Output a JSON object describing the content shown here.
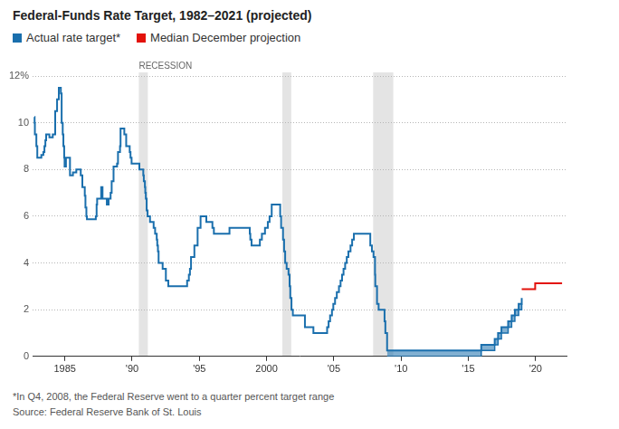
{
  "chart_data": {
    "type": "line",
    "title": "Federal-Funds Rate Target, 1982–2021 (projected)",
    "footnote": "*In Q4, 2008, the Federal Reserve went to a quarter percent target range",
    "source": "Source: Federal Reserve Bank of St. Louis",
    "xlim": [
      1982.6,
      2022.3
    ],
    "xticks": [
      1985,
      {
        "value": 1990,
        "label": "'90"
      },
      {
        "value": 1995,
        "label": "'95"
      },
      2000,
      {
        "value": 2005,
        "label": "'05"
      },
      {
        "value": 2010,
        "label": "'10"
      },
      {
        "value": 2015,
        "label": "'15"
      },
      {
        "value": 2020,
        "label": "'20"
      }
    ],
    "ylim": [
      0,
      12
    ],
    "yticks": [
      0,
      2,
      4,
      6,
      8,
      10,
      {
        "value": 12,
        "label": "12%"
      }
    ],
    "grid": true,
    "recessions": {
      "label": "RECESSION",
      "ranges": [
        [
          1990.5,
          1991.17
        ],
        [
          2001.17,
          2001.83
        ],
        [
          2007.92,
          2009.42
        ]
      ]
    },
    "series": [
      {
        "name": "Actual rate target*",
        "color": "#1a6fad",
        "line_style": "stepped",
        "x": [
          1982.74,
          1982.75,
          1982.77,
          1982.88,
          1982.95,
          1983.25,
          1983.4,
          1983.48,
          1983.55,
          1983.61,
          1983.85,
          1984.1,
          1984.28,
          1984.42,
          1984.55,
          1984.7,
          1984.76,
          1984.84,
          1984.89,
          1984.95,
          1984.98,
          1985.08,
          1985.38,
          1985.6,
          1985.85,
          1986.18,
          1986.3,
          1986.48,
          1986.53,
          1986.6,
          1986.64,
          1987.3,
          1987.36,
          1987.4,
          1987.7,
          1987.8,
          1988.12,
          1988.25,
          1988.4,
          1988.48,
          1988.62,
          1988.88,
          1988.95,
          1989.1,
          1989.14,
          1989.42,
          1989.56,
          1989.82,
          1989.88,
          1989.96,
          1990.54,
          1990.83,
          1990.87,
          1990.95,
          1990.98,
          1991.02,
          1991.08,
          1991.15,
          1991.33,
          1991.6,
          1991.71,
          1991.83,
          1991.87,
          1991.92,
          1991.97,
          1992.27,
          1992.51,
          1992.69,
          1994.09,
          1994.22,
          1994.3,
          1994.38,
          1994.63,
          1994.87,
          1995.09,
          1995.52,
          1995.97,
          1996.08,
          1997.24,
          1998.75,
          1998.79,
          1998.88,
          1999.5,
          1999.65,
          1999.88,
          2000.09,
          2000.22,
          2000.38,
          2001.01,
          2001.08,
          2001.22,
          2001.3,
          2001.38,
          2001.49,
          2001.63,
          2001.71,
          2001.76,
          2001.85,
          2001.95,
          2002.85,
          2003.48,
          2004.5,
          2004.61,
          2004.72,
          2004.86,
          2004.96,
          2005.09,
          2005.22,
          2005.38,
          2005.5,
          2005.61,
          2005.72,
          2005.84,
          2005.96,
          2006.08,
          2006.24,
          2006.36,
          2006.49,
          2007.71,
          2007.83,
          2007.95,
          2008.06,
          2008.08,
          2008.21,
          2008.33,
          2008.77,
          2008.83,
          2008.96,
          2015.96,
          2016.96,
          2017.21,
          2017.46,
          2017.96,
          2018.22,
          2018.46,
          2018.74,
          2018.97
        ],
        "values": [
          10.25,
          10,
          9.5,
          9,
          8.5,
          8.625,
          8.75,
          9,
          9.25,
          9.5,
          9.375,
          9.5,
          10.5,
          11,
          11.5,
          11.25,
          10,
          9.5,
          9,
          8.5,
          8.125,
          8.5,
          7.75,
          7.875,
          8,
          7.75,
          7.25,
          6.875,
          6.375,
          6,
          5.875,
          6,
          6.5,
          6.75,
          7.25,
          6.75,
          6.5,
          6.75,
          7,
          7.5,
          8.125,
          8.25,
          8.75,
          9,
          9.75,
          9.5,
          9,
          8.75,
          8.5,
          8.25,
          8,
          7.75,
          7.5,
          7.25,
          7,
          6.75,
          6.25,
          6,
          5.75,
          5.5,
          5.25,
          5,
          4.75,
          4.5,
          4,
          3.75,
          3.25,
          3,
          3.25,
          3.5,
          3.75,
          4.25,
          4.75,
          5.5,
          6,
          5.75,
          5.5,
          5.25,
          5.5,
          5.25,
          5,
          4.75,
          5,
          5.25,
          5.5,
          5.75,
          6,
          6.5,
          6,
          5.5,
          5,
          4.5,
          4,
          3.75,
          3.5,
          3,
          2.5,
          2,
          1.75,
          1.25,
          1,
          1.25,
          1.5,
          1.75,
          2,
          2.25,
          2.5,
          2.75,
          3,
          3.25,
          3.5,
          3.75,
          4,
          4.25,
          4.5,
          4.75,
          5,
          5.25,
          4.75,
          4.5,
          4.25,
          3.5,
          3,
          2.25,
          2,
          1.5,
          1,
          0.25,
          0.5,
          0.75,
          1,
          1.25,
          1.5,
          1.75,
          2,
          2.25,
          2.5
        ],
        "lower_bound": {
          "x": [
            2008.96,
            2015.96,
            2016.96,
            2017.21,
            2017.46,
            2017.96,
            2018.22,
            2018.46,
            2018.74,
            2018.97
          ],
          "values": [
            0,
            0.25,
            0.5,
            0.75,
            1,
            1.25,
            1.5,
            1.75,
            2,
            2.25
          ]
        }
      },
      {
        "name": "Median December projection",
        "color": "#e3120b",
        "line_style": "stepped",
        "x": [
          2018.97,
          2019.97,
          2020.97,
          2021.97
        ],
        "values": [
          2.875,
          3.125,
          3.125,
          3.125
        ]
      }
    ]
  }
}
